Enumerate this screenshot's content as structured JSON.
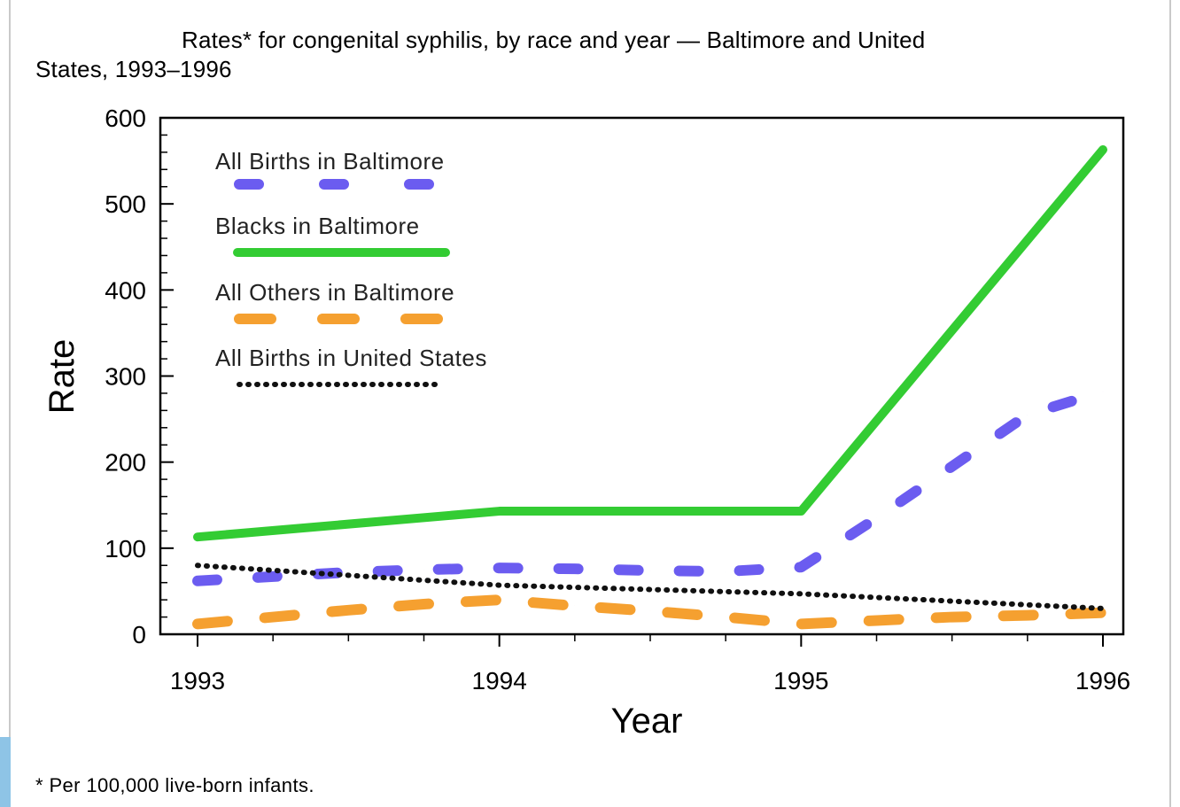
{
  "title_line1": "Rates* for congenital syphilis, by race and year — Baltimore and United",
  "title_line2": "States, 1993–1996",
  "footnote": "* Per 100,000 live-born infants.",
  "colors": {
    "all_births_baltimore": "#6b5cf0",
    "blacks_baltimore": "#33cc33",
    "all_others_baltimore": "#f5a030",
    "all_births_us": "#111111",
    "side_accent": "#8ec4e6"
  },
  "chart_data": {
    "type": "line",
    "title": "Rates* for congenital syphilis, by race and year — Baltimore and United States, 1993–1996",
    "xlabel": "Year",
    "ylabel": "Rate",
    "xlim": [
      1993,
      1996
    ],
    "ylim": [
      0,
      600
    ],
    "x_ticks": [
      "1993",
      "1994",
      "1995",
      "1996"
    ],
    "y_ticks": [
      "0",
      "100",
      "200",
      "300",
      "400",
      "500",
      "600"
    ],
    "grid": false,
    "legend_position": "top-left",
    "series": [
      {
        "name": "All Births in Baltimore",
        "style": "dashed",
        "x": [
          1993,
          1993.25,
          1993.5,
          1993.75,
          1994,
          1994.25,
          1994.5,
          1994.75,
          1995,
          1995.25,
          1995.5,
          1995.75,
          1996
        ],
        "y": [
          62,
          67,
          72,
          75,
          77,
          76,
          74,
          73,
          78,
          135,
          195,
          255,
          282
        ]
      },
      {
        "name": "Blacks in Baltimore",
        "style": "solid",
        "x": [
          1993,
          1994,
          1995,
          1996
        ],
        "y": [
          113,
          143,
          143,
          563
        ]
      },
      {
        "name": "All Others in Baltimore",
        "style": "dashed",
        "x": [
          1993,
          1993.25,
          1993.5,
          1993.75,
          1994,
          1994.25,
          1994.5,
          1994.75,
          1995,
          1995.25,
          1995.5,
          1995.75,
          1996
        ],
        "y": [
          12,
          20,
          28,
          35,
          40,
          33,
          27,
          20,
          12,
          16,
          20,
          22,
          25
        ]
      },
      {
        "name": "All Births in United States",
        "style": "dotted",
        "x": [
          1993,
          1994,
          1995,
          1996
        ],
        "y": [
          80,
          57,
          47,
          30
        ]
      }
    ]
  }
}
